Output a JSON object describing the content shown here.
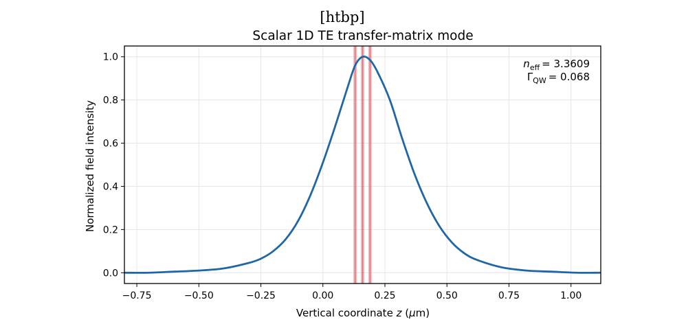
{
  "chart_data": {
    "type": "line",
    "header_text": "[htbp]",
    "title": "Scalar 1D TE transfer-matrix mode",
    "xlabel": "Vertical coordinate",
    "xlabel_var": "z",
    "xlabel_unit_pre": "(",
    "xlabel_unit_mu": "μ",
    "xlabel_unit_post": "m)",
    "ylabel": "Normalized field intensity",
    "xlim": [
      -0.8,
      1.12
    ],
    "ylim": [
      -0.05,
      1.05
    ],
    "xticks": [
      -0.75,
      -0.5,
      -0.25,
      0.0,
      0.25,
      0.5,
      0.75,
      1.0
    ],
    "xtick_labels": [
      "−0.75",
      "−0.50",
      "−0.25",
      "0.00",
      "0.25",
      "0.50",
      "0.75",
      "1.00"
    ],
    "yticks": [
      0.0,
      0.2,
      0.4,
      0.6,
      0.8,
      1.0
    ],
    "ytick_labels": [
      "0.0",
      "0.2",
      "0.4",
      "0.6",
      "0.8",
      "1.0"
    ],
    "grid": true,
    "series": [
      {
        "color": "#1f66a6",
        "x": [
          -0.8,
          -0.7,
          -0.6,
          -0.5,
          -0.4,
          -0.3,
          -0.25,
          -0.2,
          -0.15,
          -0.1,
          -0.05,
          0.0,
          0.05,
          0.1,
          0.13,
          0.16,
          0.19,
          0.22,
          0.27,
          0.32,
          0.37,
          0.42,
          0.47,
          0.52,
          0.57,
          0.62,
          0.72,
          0.82,
          0.92,
          1.02,
          1.12
        ],
        "y": [
          0.0,
          0.0,
          0.005,
          0.01,
          0.02,
          0.045,
          0.065,
          0.1,
          0.155,
          0.24,
          0.36,
          0.51,
          0.68,
          0.86,
          0.96,
          1.0,
          0.985,
          0.93,
          0.8,
          0.62,
          0.455,
          0.32,
          0.215,
          0.14,
          0.09,
          0.06,
          0.025,
          0.01,
          0.005,
          0.0,
          0.0
        ]
      }
    ],
    "qw_lines": {
      "color": "#d9636b",
      "positions": [
        0.13,
        0.16,
        0.19
      ]
    },
    "annotation": {
      "n_sym": "n",
      "n_sub": "eff",
      "n_value": "= 3.3609",
      "g_sym": "Γ",
      "g_sub": "QW",
      "g_value": "= 0.068"
    },
    "colors": {
      "curve": "#1f66a6",
      "qw_band": "#d9636b",
      "grid": "#e6e6e6"
    }
  }
}
